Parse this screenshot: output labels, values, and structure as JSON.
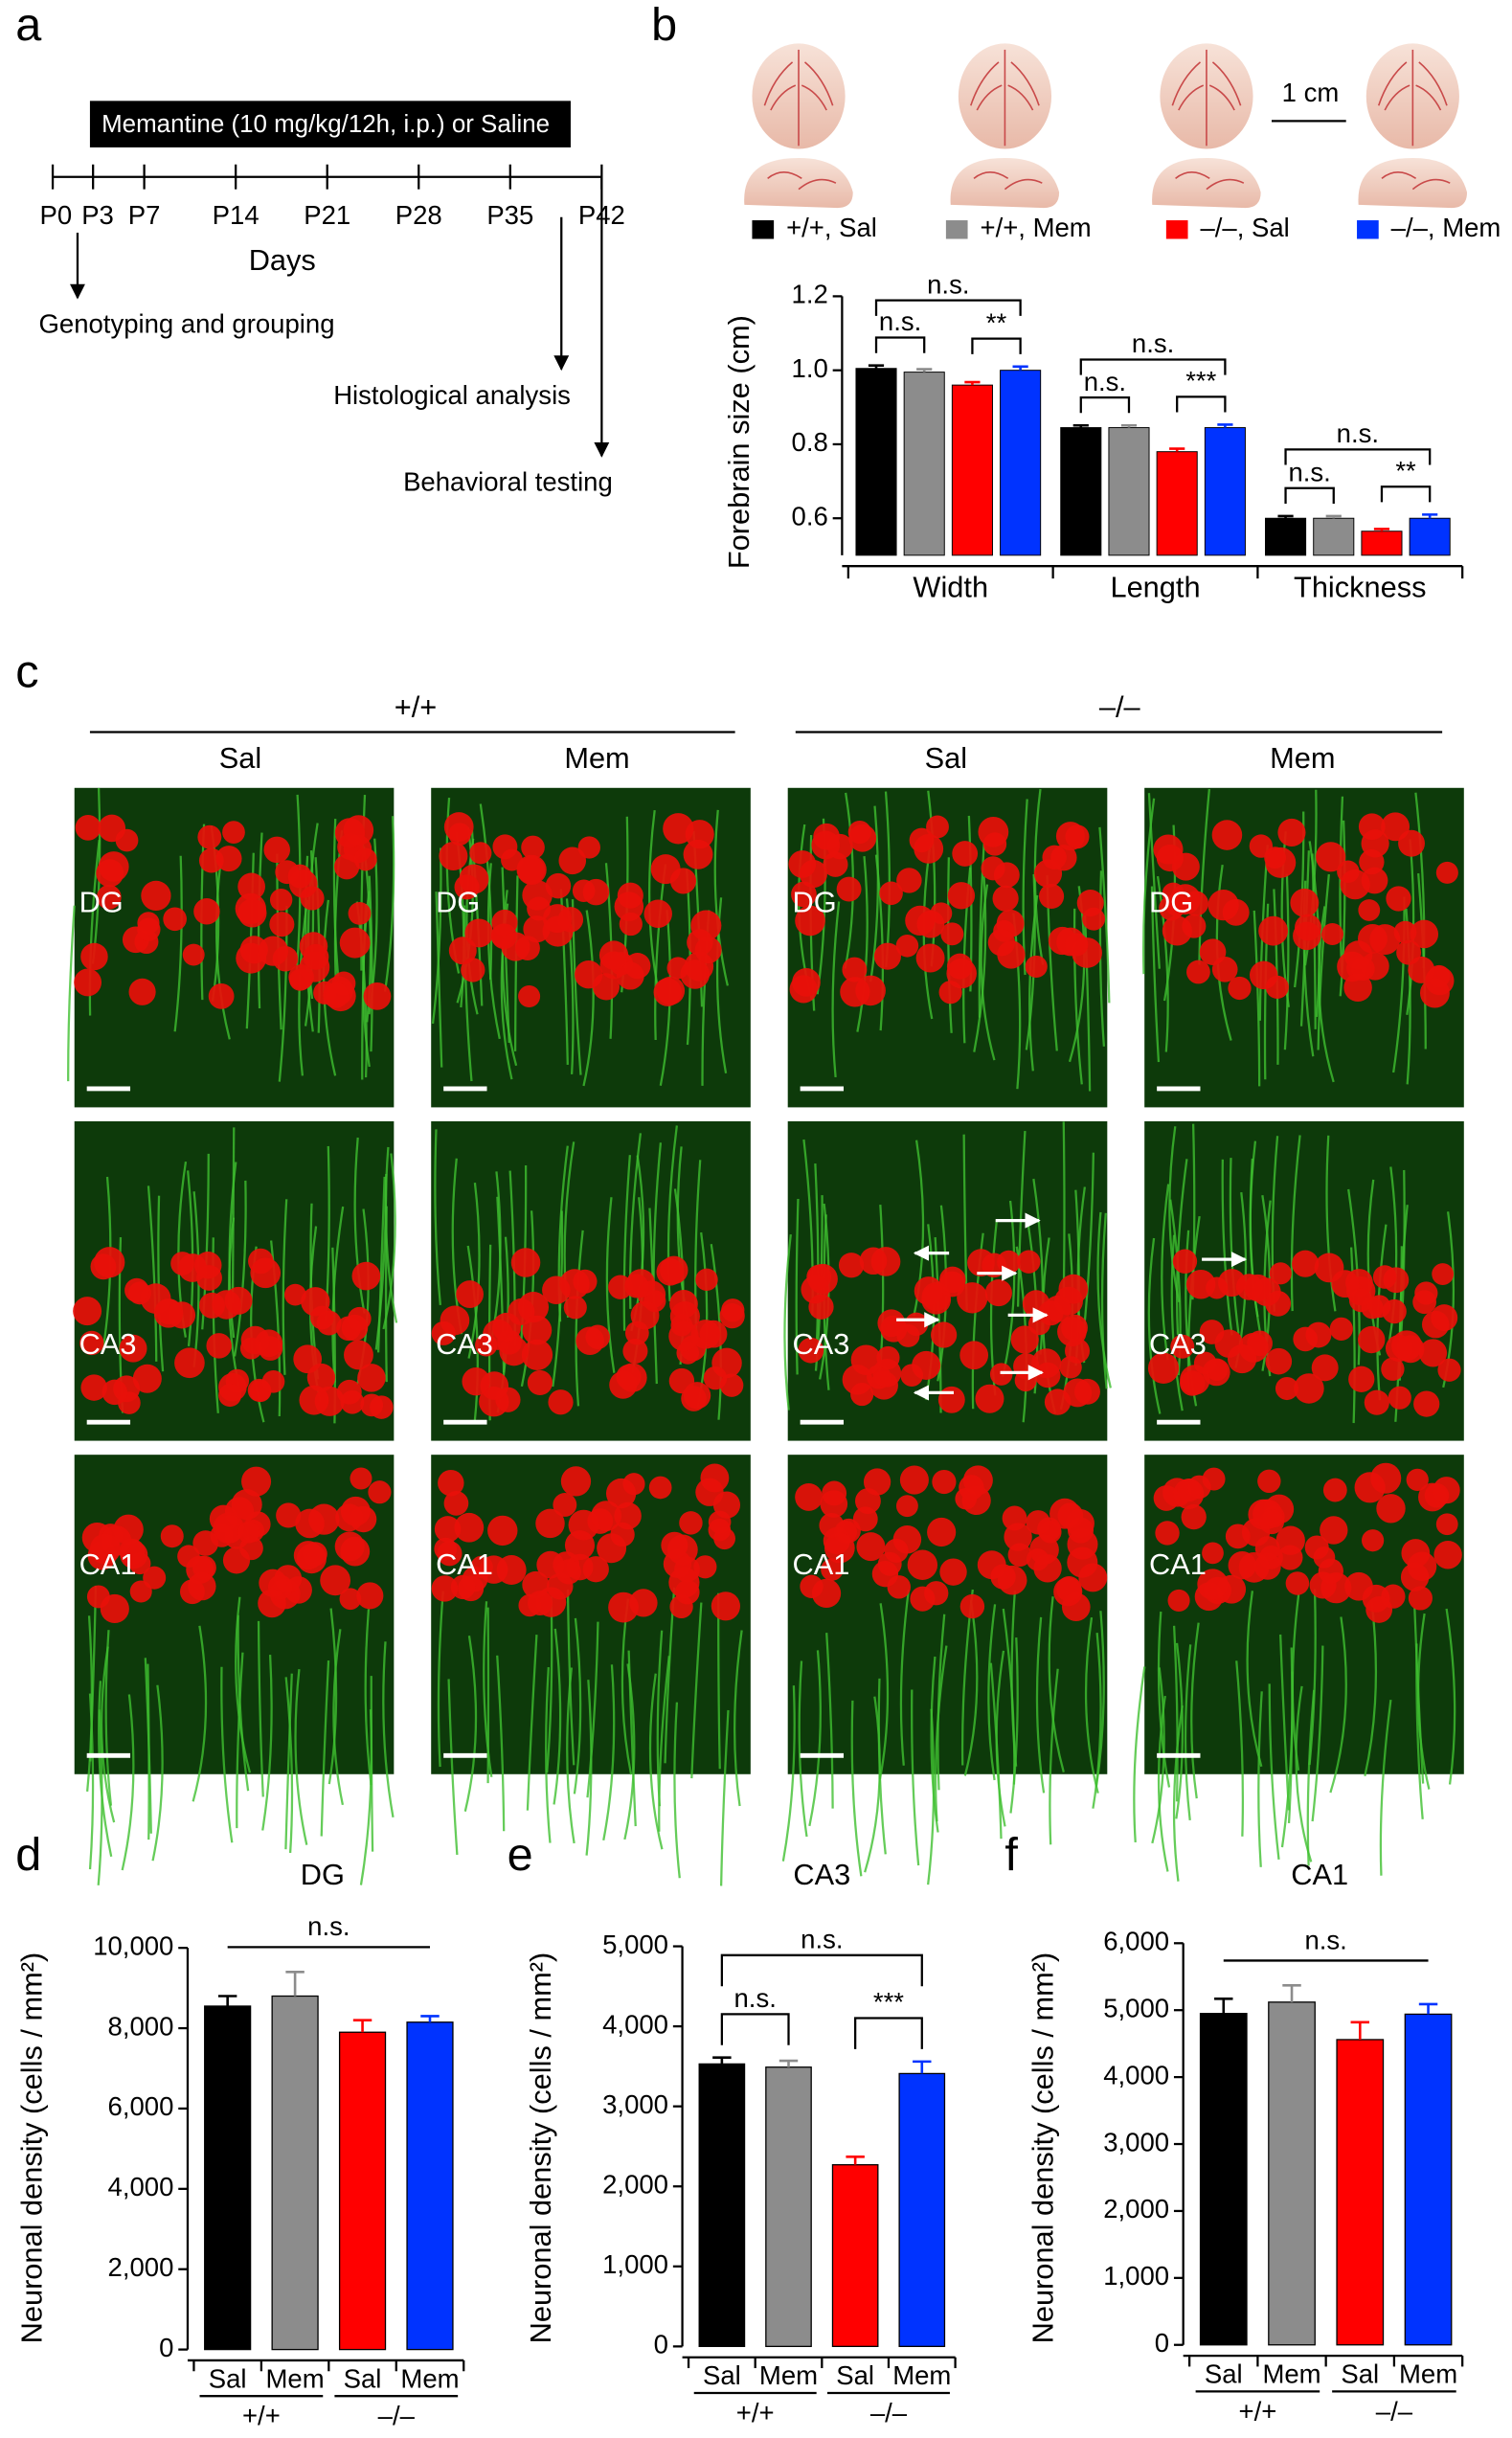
{
  "panels": [
    "a",
    "b",
    "c",
    "d",
    "e",
    "f"
  ],
  "timeline": {
    "treatment": "Memantine (10 mg/kg/12h, i.p.) or Saline",
    "days": [
      "P0",
      "P3",
      "P7",
      "P14",
      "P21",
      "P28",
      "P35",
      "P42"
    ],
    "axis_label": "Days",
    "events": [
      "Genotyping and grouping",
      "Histological analysis",
      "Behavioral testing"
    ]
  },
  "scale_label": "1 cm",
  "micrographs": {
    "genotypes": [
      "+/+",
      "–/–"
    ],
    "treatments": [
      "Sal",
      "Mem",
      "Sal",
      "Mem"
    ],
    "regions": [
      "DG",
      "CA3",
      "CA1"
    ]
  },
  "chart_data": [
    {
      "type": "grouped_bar",
      "y_label": "Forebrain size (cm)",
      "categories": [
        "Width",
        "Length",
        "Thickness"
      ],
      "series": [
        {
          "name": "+/+, Sal",
          "color": "#000000",
          "values": [
            1.005,
            0.845,
            0.6
          ],
          "errors": [
            0.008,
            0.006,
            0.006
          ]
        },
        {
          "name": "+/+, Mem",
          "color": "#8c8c8c",
          "values": [
            0.995,
            0.845,
            0.6
          ],
          "errors": [
            0.008,
            0.006,
            0.006
          ]
        },
        {
          "name": "–/–, Sal",
          "color": "#ff0000",
          "values": [
            0.96,
            0.78,
            0.565
          ],
          "errors": [
            0.008,
            0.008,
            0.006
          ]
        },
        {
          "name": "–/–, Mem",
          "color": "#0033ff",
          "values": [
            1.0,
            0.845,
            0.6
          ],
          "errors": [
            0.01,
            0.008,
            0.01
          ]
        }
      ],
      "ylim": [
        0.5,
        1.2
      ],
      "yticks": [
        0.6,
        0.8,
        {
          "value": 1,
          "label": "1.0"
        },
        1.2
      ],
      "significance": [
        [
          "n.s.",
          "**",
          "n.s."
        ],
        [
          "n.s.",
          "***",
          "n.s."
        ],
        [
          "n.s.",
          "**",
          "n.s."
        ]
      ]
    },
    {
      "type": "bar",
      "title": "DG",
      "y_label": "Neuronal density (cells / mm²)",
      "categories": [
        "Sal",
        "Mem",
        "Sal",
        "Mem"
      ],
      "groups": [
        "+/+",
        "–/–"
      ],
      "colors": [
        "#000000",
        "#8c8c8c",
        "#ff0000",
        "#0033ff"
      ],
      "values": [
        8550,
        8800,
        7900,
        8150
      ],
      "errors": [
        250,
        600,
        300,
        150
      ],
      "ylim": [
        0,
        10000
      ],
      "yticks": [
        0,
        {
          "value": 2000,
          "label": "2,000"
        },
        {
          "value": 4000,
          "label": "4,000"
        },
        {
          "value": 6000,
          "label": "6,000"
        },
        {
          "value": 8000,
          "label": "8,000"
        },
        {
          "value": 10000,
          "label": "10,000"
        }
      ],
      "significance": [
        "n.s."
      ]
    },
    {
      "type": "bar",
      "title": "CA3",
      "y_label": "Neuronal density (cells / mm²)",
      "categories": [
        "Sal",
        "Mem",
        "Sal",
        "Mem"
      ],
      "groups": [
        "+/+",
        "–/–"
      ],
      "colors": [
        "#000000",
        "#8c8c8c",
        "#ff0000",
        "#0033ff"
      ],
      "values": [
        3530,
        3490,
        2270,
        3410
      ],
      "errors": [
        80,
        80,
        100,
        150
      ],
      "ylim": [
        0,
        5000
      ],
      "yticks": [
        0,
        {
          "value": 1000,
          "label": "1,000"
        },
        {
          "value": 2000,
          "label": "2,000"
        },
        {
          "value": 3000,
          "label": "3,000"
        },
        {
          "value": 4000,
          "label": "4,000"
        },
        {
          "value": 5000,
          "label": "5,000"
        }
      ],
      "significance": [
        "n.s.",
        "***",
        "n.s."
      ]
    },
    {
      "type": "bar",
      "title": "CA1",
      "y_label": "Neuronal density (cells / mm²)",
      "categories": [
        "Sal",
        "Mem",
        "Sal",
        "Mem"
      ],
      "groups": [
        "+/+",
        "–/–"
      ],
      "colors": [
        "#000000",
        "#8c8c8c",
        "#ff0000",
        "#0033ff"
      ],
      "values": [
        4950,
        5120,
        4560,
        4940
      ],
      "errors": [
        220,
        250,
        260,
        150
      ],
      "ylim": [
        0,
        6000
      ],
      "yticks": [
        0,
        {
          "value": 1000,
          "label": "1,000"
        },
        {
          "value": 2000,
          "label": "2,000"
        },
        {
          "value": 3000,
          "label": "3,000"
        },
        {
          "value": 4000,
          "label": "4,000"
        },
        {
          "value": 5000,
          "label": "5,000"
        },
        {
          "value": 6000,
          "label": "6,000"
        }
      ],
      "significance": [
        "n.s."
      ]
    }
  ]
}
